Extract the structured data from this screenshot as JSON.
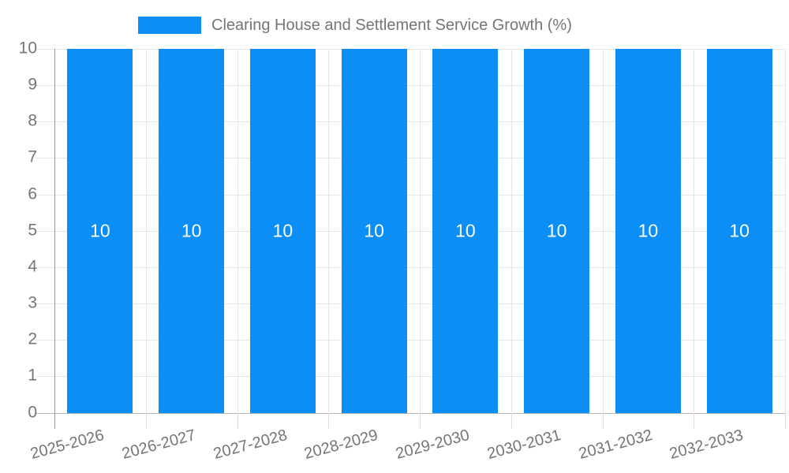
{
  "chart_data": {
    "type": "bar",
    "title": "Clearing House and Settlement Service Growth (%)",
    "categories": [
      "2025-2026",
      "2026-2027",
      "2027-2028",
      "2028-2029",
      "2029-2030",
      "2030-2031",
      "2031-2032",
      "2032-2033"
    ],
    "values": [
      10,
      10,
      10,
      10,
      10,
      10,
      10,
      10
    ],
    "bar_labels": [
      "10",
      "10",
      "10",
      "10",
      "10",
      "10",
      "10",
      "10"
    ],
    "ytick_labels": [
      "0",
      "1",
      "2",
      "3",
      "4",
      "5",
      "6",
      "7",
      "8",
      "9",
      "10"
    ],
    "yticks": [
      0,
      1,
      2,
      3,
      4,
      5,
      6,
      7,
      8,
      9,
      10
    ],
    "ylim": [
      0,
      10
    ],
    "xlabel": "",
    "ylabel": "",
    "grid": true,
    "legend_position": "top",
    "colors": {
      "bar": "#0b8ef5",
      "grid": "#e6e6e6",
      "baseline": "#b3b3b3",
      "y_axis_line": "#9a9a9a",
      "tick": "#dedede",
      "label_text": "#757575",
      "bar_label_text": "#ffffff",
      "background": "#ffffff"
    }
  }
}
